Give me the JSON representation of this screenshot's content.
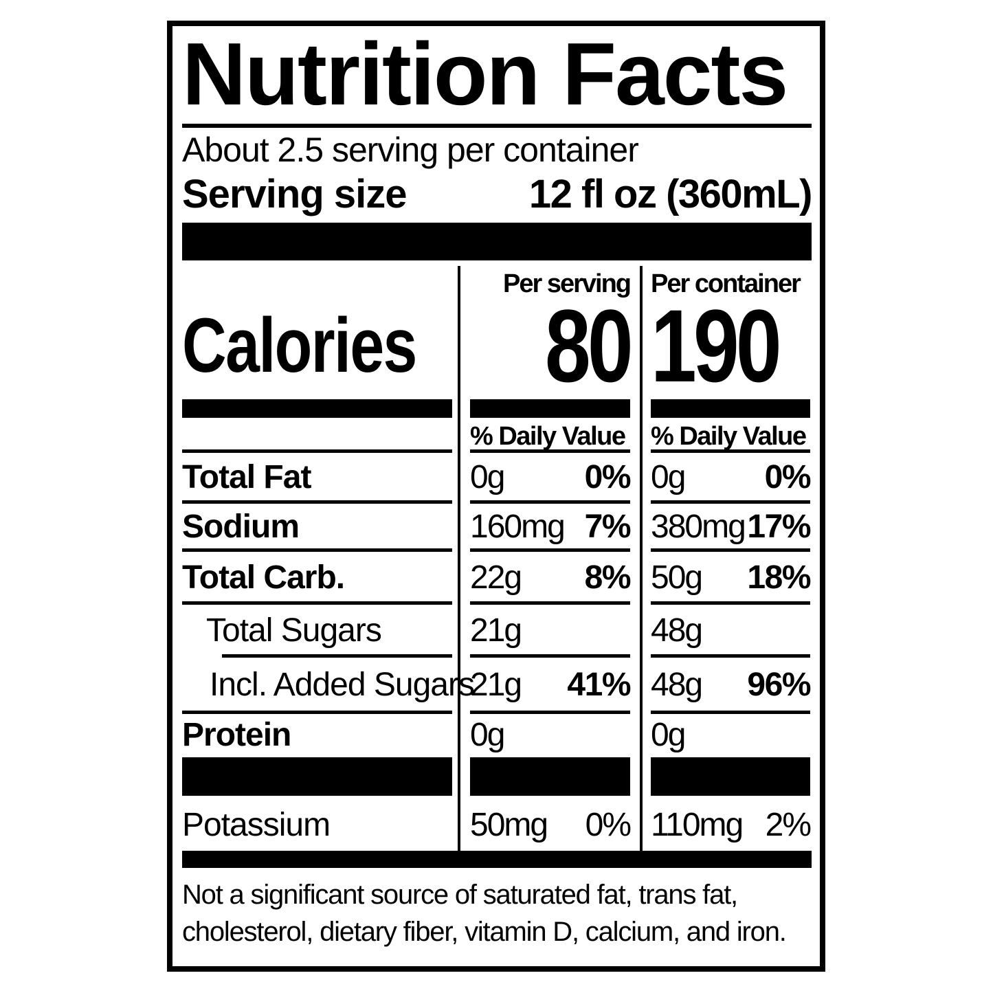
{
  "title": "Nutrition Facts",
  "servings_per_container": "About 2.5 serving per container",
  "serving_size": {
    "label": "Serving size",
    "value": "12 fl oz (360mL)"
  },
  "column_headers": {
    "per_serving": "Per serving",
    "per_container": "Per container"
  },
  "calories": {
    "label": "Calories",
    "per_serving": "80",
    "per_container": "190"
  },
  "daily_value_header": {
    "per_serving": "% Daily Value",
    "per_container": "% Daily Value"
  },
  "nutrients": [
    {
      "name": "Total Fat",
      "serving_amount": "0g",
      "serving_dv": "0%",
      "container_amount": "0g",
      "container_dv": "0%"
    },
    {
      "name": "Sodium",
      "serving_amount": "160mg",
      "serving_dv": "7%",
      "container_amount": "380mg",
      "container_dv": "17%"
    },
    {
      "name": "Total Carb.",
      "serving_amount": "22g",
      "serving_dv": "8%",
      "container_amount": "50g",
      "container_dv": "18%"
    },
    {
      "name": "Total Sugars",
      "serving_amount": "21g",
      "serving_dv": "",
      "container_amount": "48g",
      "container_dv": ""
    },
    {
      "name": "Incl. Added Sugars",
      "serving_amount": "21g",
      "serving_dv": "41%",
      "container_amount": "48g",
      "container_dv": "96%"
    },
    {
      "name": "Protein",
      "serving_amount": "0g",
      "serving_dv": "",
      "container_amount": "0g",
      "container_dv": ""
    }
  ],
  "potassium": {
    "name": "Potassium",
    "serving_amount": "50mg",
    "serving_dv": "0%",
    "container_amount": "110mg",
    "container_dv": "2%"
  },
  "footnote_line1": "Not a significant source of saturated fat, trans fat,",
  "footnote_line2": "cholesterol, dietary fiber, vitamin D, calcium, and iron.",
  "colors": {
    "ink": "#000000",
    "background": "#ffffff"
  }
}
